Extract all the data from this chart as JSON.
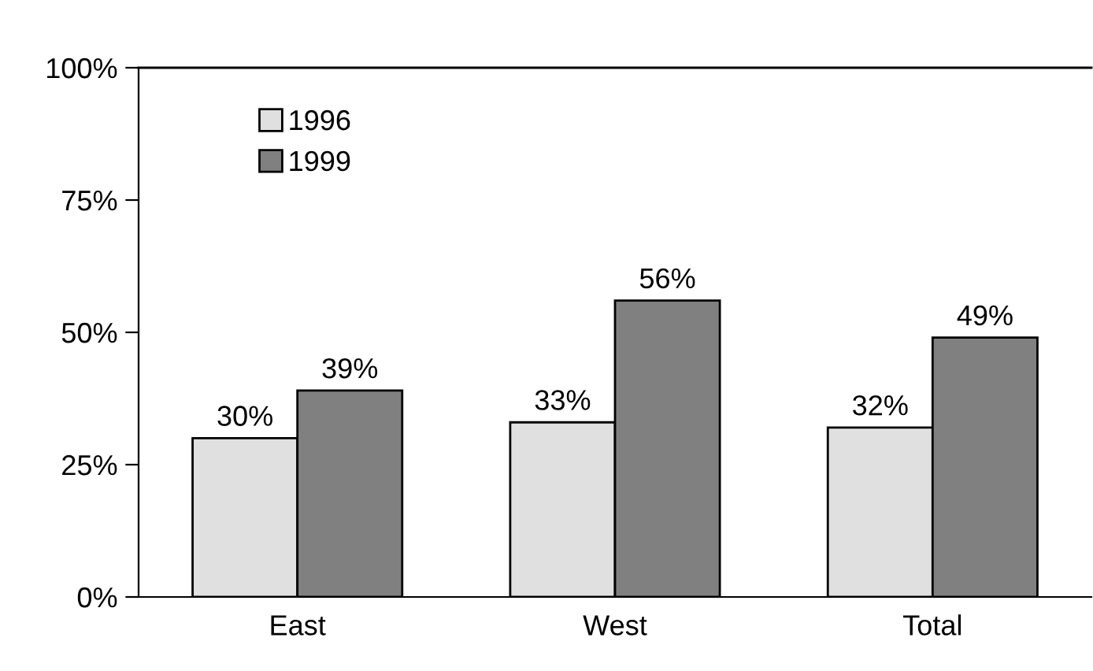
{
  "chart_data": {
    "type": "bar",
    "categories": [
      "East",
      "West",
      "Total"
    ],
    "series": [
      {
        "name": "1996",
        "color": "#e0e0e0",
        "values": [
          30,
          33,
          32
        ],
        "value_labels": [
          "30%",
          "33%",
          "32%"
        ]
      },
      {
        "name": "1999",
        "color": "#808080",
        "values": [
          39,
          56,
          49
        ],
        "value_labels": [
          "39%",
          "56%",
          "49%"
        ]
      }
    ],
    "ylim": [
      0,
      100
    ],
    "yticks": [
      {
        "value": 0,
        "label": "0%"
      },
      {
        "value": 25,
        "label": "25%"
      },
      {
        "value": 50,
        "label": "50%"
      },
      {
        "value": 75,
        "label": "75%"
      },
      {
        "value": 100,
        "label": "100%"
      }
    ],
    "grid": false,
    "legend": "top left"
  }
}
